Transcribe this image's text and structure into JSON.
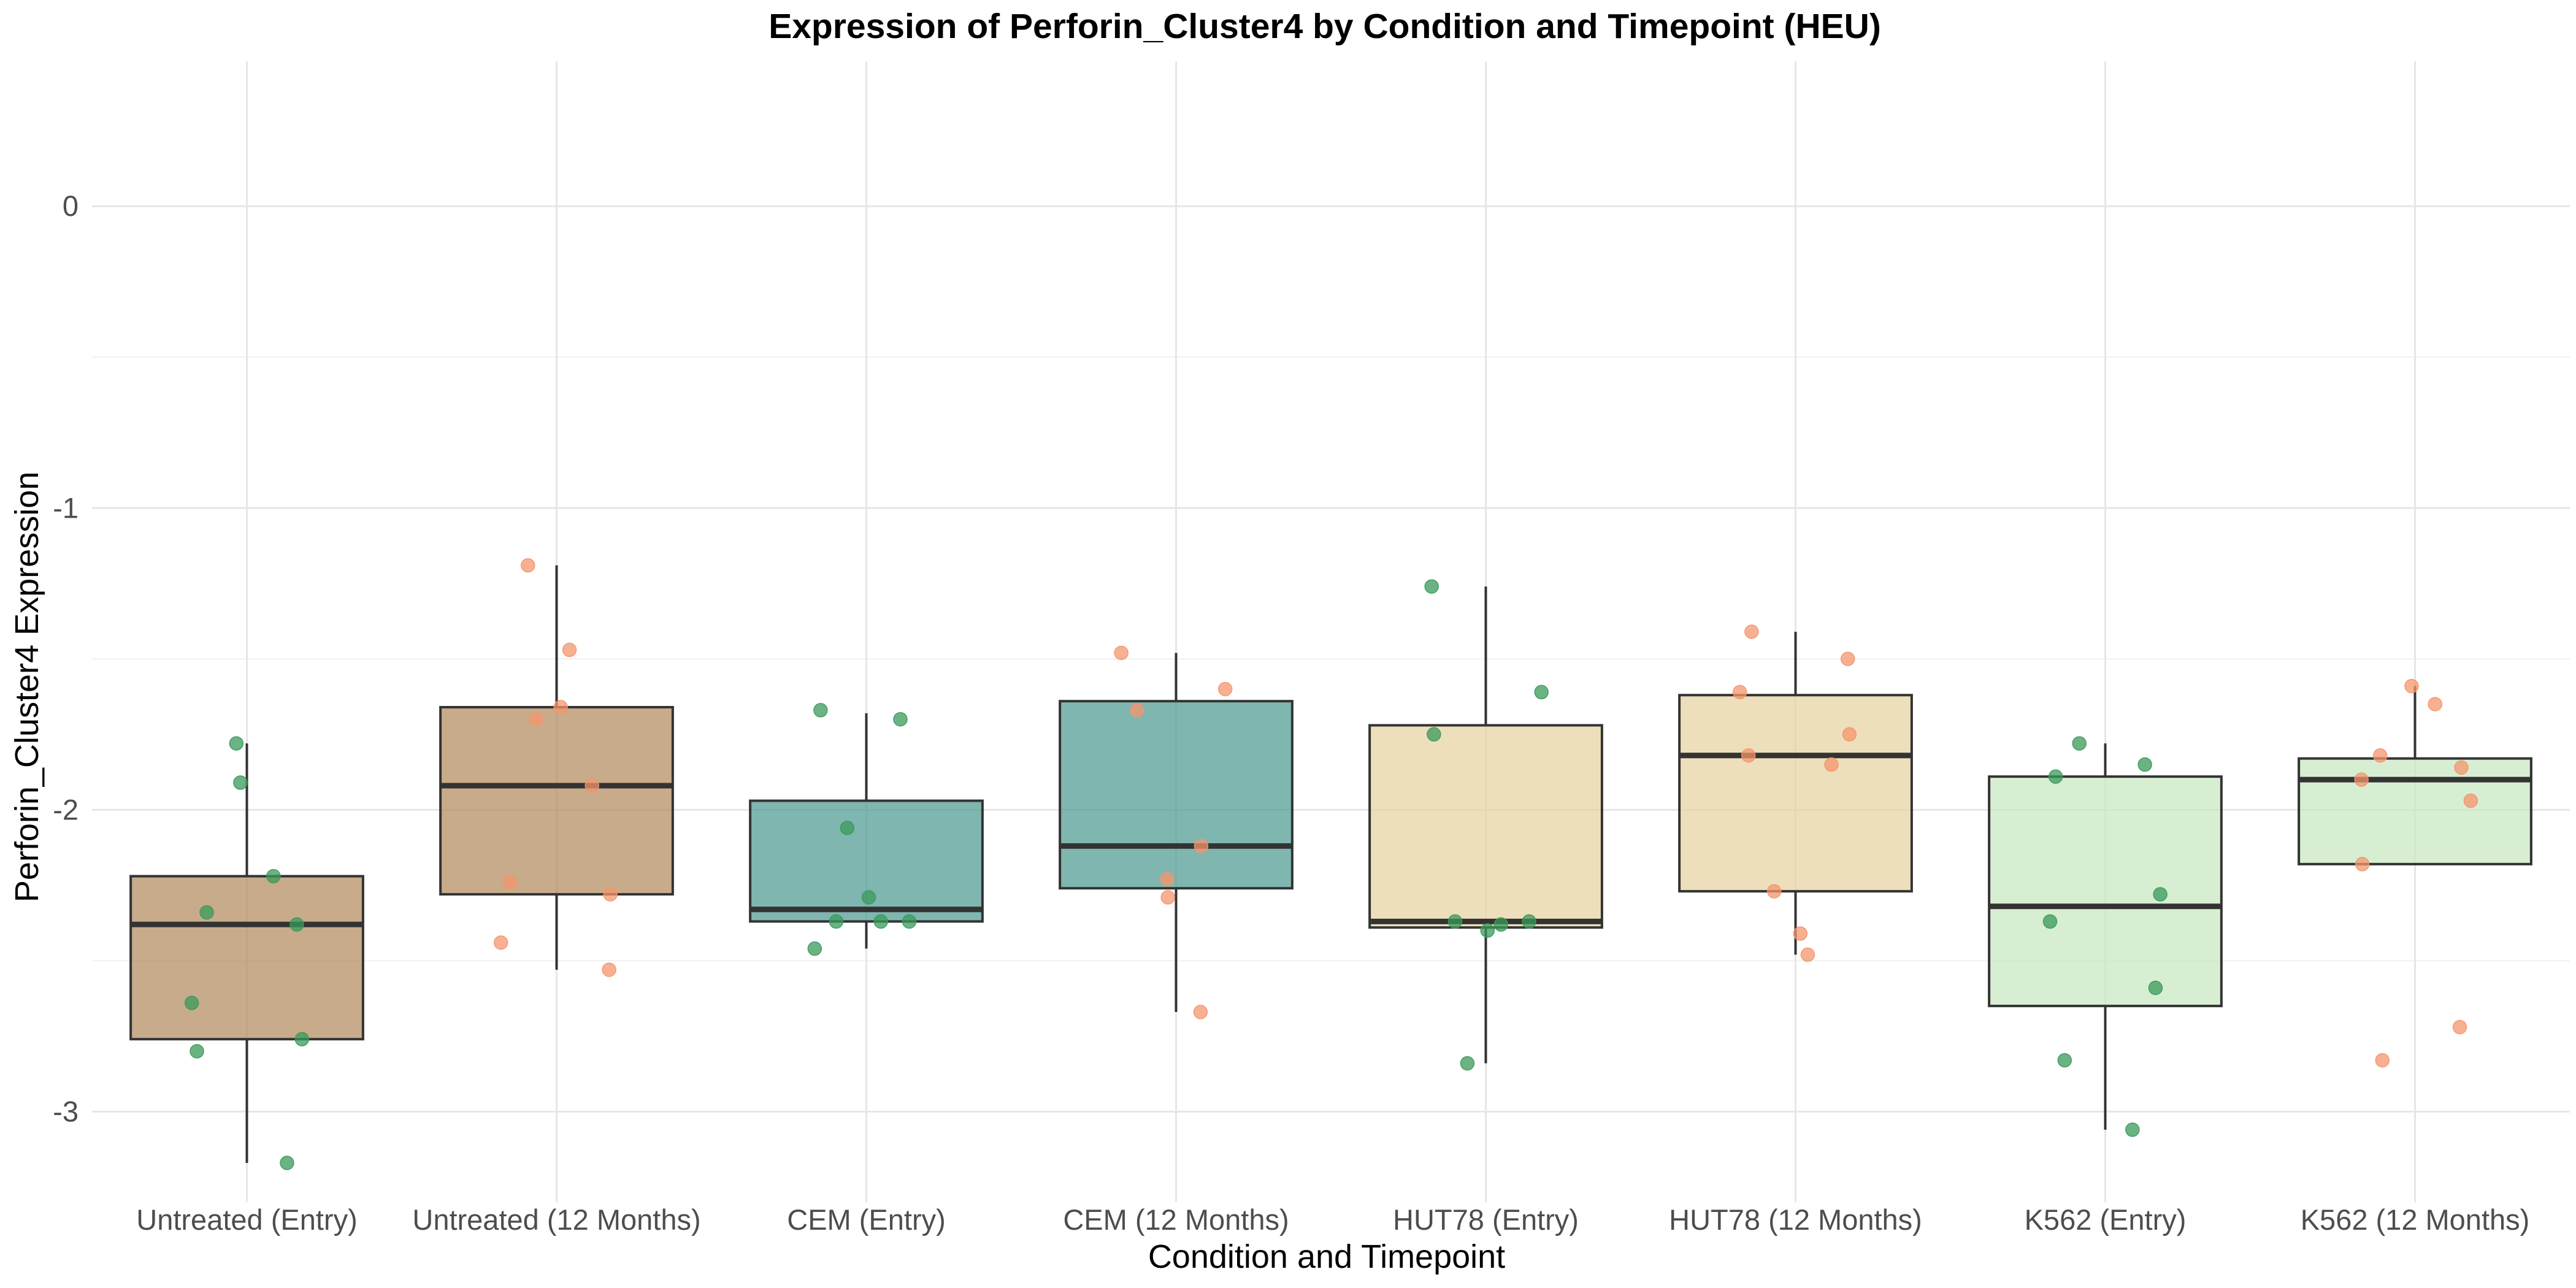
{
  "chart_data": {
    "type": "box",
    "title": "Expression of Perforin_Cluster4 by Condition and Timepoint (HEU)",
    "xlabel": "Condition and Timepoint",
    "ylabel": "Perforin_Cluster4 Expression",
    "ylim": [
      -3.3,
      0.48
    ],
    "yticks": [
      0,
      -1,
      -2,
      -3
    ],
    "ytick_labels": [
      "0",
      "-1",
      "-2",
      "-3"
    ],
    "grid": true,
    "legend": "none",
    "categories": [
      "Untreated (Entry)",
      "Untreated (12 Months)",
      "CEM (Entry)",
      "CEM (12 Months)",
      "HUT78 (Entry)",
      "HUT78 (12 Months)",
      "K562 (Entry)",
      "K562 (12 Months)"
    ],
    "box_fills": [
      "#b28b5e",
      "#b28b5e",
      "#4d9a92",
      "#4d9a92",
      "#e8d3a2",
      "#e8d3a2",
      "#c8e8c2",
      "#c8e8c2"
    ],
    "point_colors": [
      "#3a9a5a",
      "#f4956d",
      "#3a9a5a",
      "#f4956d",
      "#3a9a5a",
      "#f4956d",
      "#3a9a5a",
      "#f4956d"
    ],
    "boxes": [
      {
        "category": "Untreated (Entry)",
        "whisker_low": -3.17,
        "q1": -2.76,
        "median": -2.38,
        "q3": -2.22,
        "whisker_high": -1.78
      },
      {
        "category": "Untreated (12 Months)",
        "whisker_low": -2.53,
        "q1": -2.28,
        "median": -1.92,
        "q3": -1.66,
        "whisker_high": -1.19
      },
      {
        "category": "CEM (Entry)",
        "whisker_low": -2.46,
        "q1": -2.37,
        "median": -2.33,
        "q3": -1.97,
        "whisker_high": -1.68
      },
      {
        "category": "CEM (12 Months)",
        "whisker_low": -2.67,
        "q1": -2.26,
        "median": -2.12,
        "q3": -1.64,
        "whisker_high": -1.48
      },
      {
        "category": "HUT78 (Entry)",
        "whisker_low": -2.84,
        "q1": -2.39,
        "median": -2.37,
        "q3": -1.72,
        "whisker_high": -1.26
      },
      {
        "category": "HUT78 (12 Months)",
        "whisker_low": -2.48,
        "q1": -2.27,
        "median": -1.82,
        "q3": -1.62,
        "whisker_high": -1.41
      },
      {
        "category": "K562 (Entry)",
        "whisker_low": -3.06,
        "q1": -2.65,
        "median": -2.32,
        "q3": -1.89,
        "whisker_high": -1.78
      },
      {
        "category": "K562 (12 Months)",
        "whisker_low": -2.18,
        "q1": -2.18,
        "median": -1.9,
        "q3": -1.83,
        "whisker_high": -1.59
      }
    ],
    "points": [
      {
        "category": "Untreated (Entry)",
        "values": [
          -1.91,
          -1.78,
          -2.22,
          -2.34,
          -2.38,
          -2.64,
          -2.76,
          -2.8,
          -3.17
        ]
      },
      {
        "category": "Untreated (12 Months)",
        "values": [
          -1.19,
          -1.47,
          -1.66,
          -1.7,
          -1.92,
          -2.24,
          -2.28,
          -2.44,
          -2.53
        ]
      },
      {
        "category": "CEM (Entry)",
        "values": [
          -1.67,
          -1.7,
          -2.06,
          -2.29,
          -2.37,
          -2.37,
          -2.37,
          -2.46
        ]
      },
      {
        "category": "CEM (12 Months)",
        "values": [
          -1.48,
          -1.6,
          -1.67,
          -2.12,
          -2.23,
          -2.29,
          -2.67
        ]
      },
      {
        "category": "HUT78 (Entry)",
        "values": [
          -1.26,
          -1.61,
          -1.75,
          -2.37,
          -2.37,
          -2.38,
          -2.4,
          -2.84
        ]
      },
      {
        "category": "HUT78 (12 Months)",
        "values": [
          -1.41,
          -1.5,
          -1.61,
          -1.75,
          -1.82,
          -1.85,
          -2.27,
          -2.41,
          -2.48
        ]
      },
      {
        "category": "K562 (Entry)",
        "values": [
          -1.78,
          -1.85,
          -1.89,
          -2.28,
          -2.37,
          -2.59,
          -2.83,
          -3.06
        ]
      },
      {
        "category": "K562 (12 Months)",
        "values": [
          -1.59,
          -1.65,
          -1.82,
          -1.86,
          -1.9,
          -1.97,
          -2.18,
          -2.72,
          -2.83
        ]
      }
    ]
  }
}
